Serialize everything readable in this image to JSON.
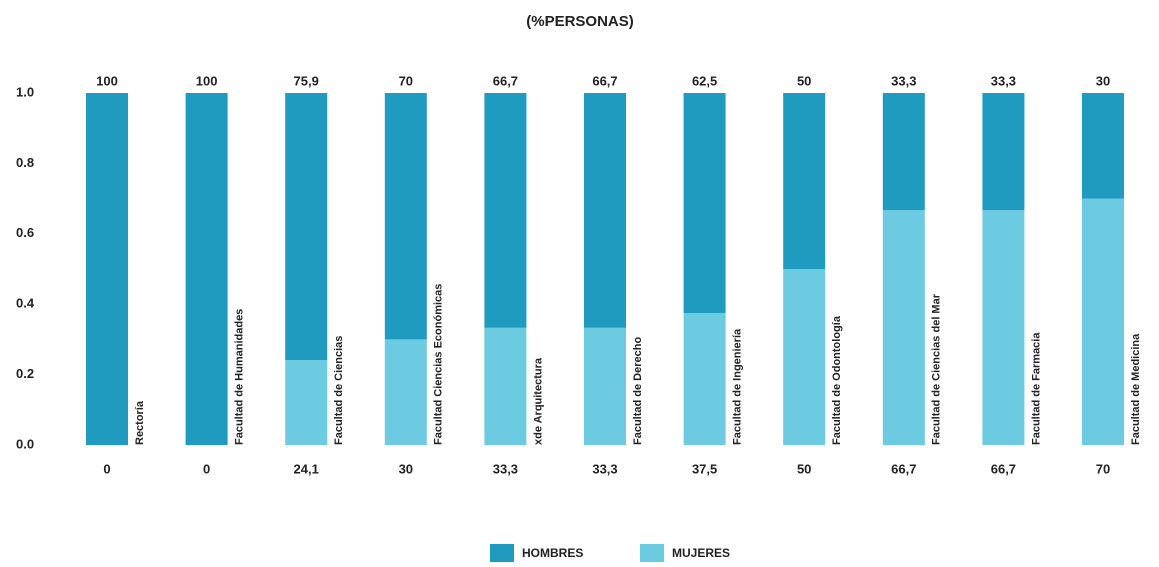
{
  "chart_data": {
    "type": "stacked_bar",
    "title": "(%PERSONAS)",
    "categories": [
      "Rectoría",
      "Facultad de Humanidades",
      "Facultad de Ciencias",
      "Facultad  Ciencias Económicas",
      "xde Arquitectura",
      "Facultad de Derecho",
      "Facultad de Ingeniería",
      "Facultad de Odontología",
      "Facultad de Ciencias del Mar",
      "Facultad de Farmacia",
      "Facultad de Medicina"
    ],
    "series": [
      {
        "name": "MUJERES",
        "color": "#6ccbe0",
        "values": [
          0,
          0,
          0.241,
          0.3,
          0.333,
          0.333,
          0.375,
          0.5,
          0.667,
          0.667,
          0.7
        ],
        "value_labels": [
          "0",
          "0",
          "24,1",
          "30",
          "33,3",
          "33,3",
          "37,5",
          "50",
          "66,7",
          "66,7",
          "70"
        ]
      },
      {
        "name": "HOMBRES",
        "color": "#1f9bbf",
        "values": [
          1,
          1,
          0.759,
          0.7,
          0.667,
          0.667,
          0.625,
          0.5,
          0.333,
          0.333,
          0.3
        ],
        "value_labels": [
          "100",
          "100",
          "75,9",
          "70",
          "66,7",
          "66,7",
          "62,5",
          "50",
          "33,3",
          "33,3",
          "30"
        ]
      }
    ],
    "ylim": [
      0,
      1
    ],
    "yticks": [
      {
        "value": 0,
        "label": "0.0"
      },
      {
        "value": 0.2,
        "label": "0.2"
      },
      {
        "value": 0.4,
        "label": "0.4"
      },
      {
        "value": 0.6,
        "label": "0.6"
      },
      {
        "value": 0.8,
        "label": "0.8"
      },
      {
        "value": 1,
        "label": "1.0"
      }
    ],
    "grid": false
  }
}
